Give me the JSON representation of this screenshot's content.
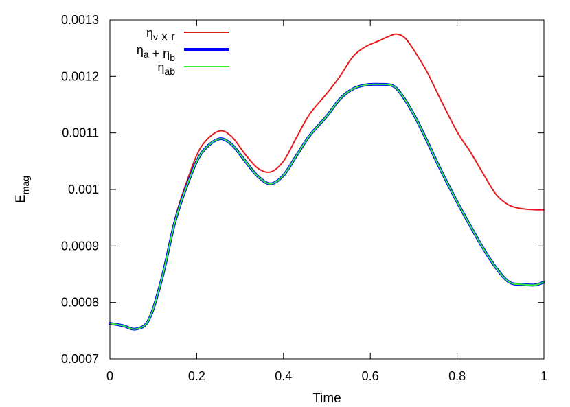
{
  "chart_data": {
    "type": "line",
    "xlabel": "Time",
    "ylabel": {
      "main": "E",
      "sub": "mag"
    },
    "xlim": [
      0,
      1
    ],
    "ylim": [
      0.0007,
      0.0013
    ],
    "x_ticks": [
      "0",
      "0.2",
      "0.4",
      "0.6",
      "0.8",
      "1"
    ],
    "y_ticks": [
      "0.0007",
      "0.0008",
      "0.0009",
      "0.001",
      "0.0011",
      "0.0012",
      "0.0013"
    ],
    "grid": false,
    "legend_position": "top-left",
    "legend": [
      {
        "parts": [
          {
            "t": "η",
            "sub": "v"
          },
          {
            "t": " x r",
            "sub": ""
          }
        ]
      },
      {
        "parts": [
          {
            "t": "η",
            "sub": "a"
          },
          {
            "t": " + η",
            "sub": "b"
          }
        ]
      },
      {
        "parts": [
          {
            "t": "η",
            "sub": "ab"
          }
        ]
      }
    ],
    "series": [
      {
        "color": "#e41a1c",
        "width": 2,
        "x": [
          0,
          0.03,
          0.06,
          0.09,
          0.12,
          0.15,
          0.18,
          0.21,
          0.25,
          0.28,
          0.31,
          0.34,
          0.37,
          0.4,
          0.43,
          0.46,
          0.5,
          0.53,
          0.56,
          0.59,
          0.62,
          0.64,
          0.66,
          0.68,
          0.7,
          0.73,
          0.76,
          0.8,
          0.83,
          0.86,
          0.89,
          0.92,
          0.95,
          0.98,
          1.0
        ],
        "y": [
          0.000763,
          0.000759,
          0.000753,
          0.00077,
          0.000845,
          0.000948,
          0.00102,
          0.001075,
          0.001103,
          0.001094,
          0.001064,
          0.001038,
          0.001031,
          0.00105,
          0.001092,
          0.001133,
          0.00117,
          0.0012,
          0.001235,
          0.001253,
          0.001263,
          0.00127,
          0.001275,
          0.001268,
          0.001247,
          0.001209,
          0.001162,
          0.001102,
          0.001067,
          0.001028,
          0.000991,
          0.000972,
          0.000966,
          0.000964,
          0.000964
        ]
      },
      {
        "color": "#0000ff",
        "width": 4,
        "x": [
          0,
          0.03,
          0.06,
          0.09,
          0.12,
          0.15,
          0.18,
          0.21,
          0.25,
          0.28,
          0.31,
          0.34,
          0.37,
          0.4,
          0.43,
          0.46,
          0.5,
          0.53,
          0.56,
          0.59,
          0.62,
          0.65,
          0.67,
          0.7,
          0.73,
          0.76,
          0.8,
          0.83,
          0.86,
          0.89,
          0.92,
          0.95,
          0.98,
          1.0
        ],
        "y": [
          0.000763,
          0.000759,
          0.000753,
          0.00077,
          0.000843,
          0.000943,
          0.001012,
          0.001063,
          0.001089,
          0.00108,
          0.001052,
          0.001024,
          0.00101,
          0.001025,
          0.00106,
          0.001095,
          0.00113,
          0.00116,
          0.001178,
          0.001185,
          0.001186,
          0.001184,
          0.00117,
          0.001133,
          0.001087,
          0.001038,
          0.000978,
          0.000936,
          0.000896,
          0.000861,
          0.000836,
          0.000832,
          0.000831,
          0.000836
        ]
      },
      {
        "color": "#33ee33",
        "width": 2,
        "x": [
          0,
          0.03,
          0.06,
          0.09,
          0.12,
          0.15,
          0.18,
          0.21,
          0.25,
          0.28,
          0.31,
          0.34,
          0.37,
          0.4,
          0.43,
          0.46,
          0.5,
          0.53,
          0.56,
          0.59,
          0.62,
          0.65,
          0.67,
          0.7,
          0.73,
          0.76,
          0.8,
          0.83,
          0.86,
          0.89,
          0.92,
          0.95,
          0.98,
          1.0
        ],
        "y": [
          0.000763,
          0.000759,
          0.000753,
          0.00077,
          0.000843,
          0.000943,
          0.001012,
          0.001063,
          0.001089,
          0.00108,
          0.001052,
          0.001024,
          0.00101,
          0.001025,
          0.00106,
          0.001095,
          0.00113,
          0.00116,
          0.001178,
          0.001185,
          0.001186,
          0.001184,
          0.00117,
          0.001133,
          0.001087,
          0.001038,
          0.000978,
          0.000936,
          0.000896,
          0.000861,
          0.000836,
          0.000832,
          0.000831,
          0.000836
        ]
      }
    ]
  }
}
